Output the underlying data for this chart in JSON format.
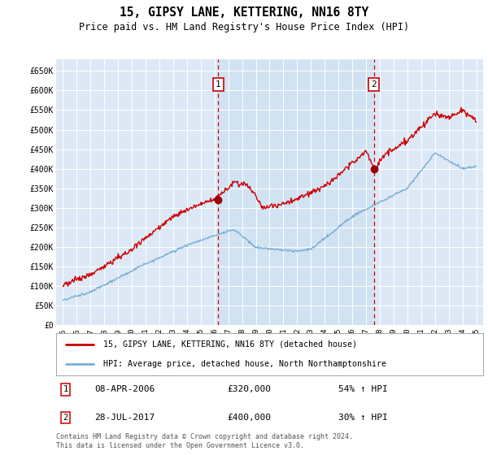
{
  "title": "15, GIPSY LANE, KETTERING, NN16 8TY",
  "subtitle": "Price paid vs. HM Land Registry's House Price Index (HPI)",
  "plot_bg_color": "#dce8f5",
  "ylim": [
    0,
    680000
  ],
  "yticks": [
    0,
    50000,
    100000,
    150000,
    200000,
    250000,
    300000,
    350000,
    400000,
    450000,
    500000,
    550000,
    600000,
    650000
  ],
  "ytick_labels": [
    "£0",
    "£50K",
    "£100K",
    "£150K",
    "£200K",
    "£250K",
    "£300K",
    "£350K",
    "£400K",
    "£450K",
    "£500K",
    "£550K",
    "£600K",
    "£650K"
  ],
  "legend_line1": "15, GIPSY LANE, KETTERING, NN16 8TY (detached house)",
  "legend_line2": "HPI: Average price, detached house, North Northamptonshire",
  "event1_date": "08-APR-2006",
  "event1_price": "£320,000",
  "event1_hpi": "54% ↑ HPI",
  "event2_date": "28-JUL-2017",
  "event2_price": "£400,000",
  "event2_hpi": "30% ↑ HPI",
  "footnote": "Contains HM Land Registry data © Crown copyright and database right 2024.\nThis data is licensed under the Open Government Licence v3.0.",
  "hpi_color": "#7aaed4",
  "price_color": "#cc0000",
  "event_x1": 2006.27,
  "event_x2": 2017.58,
  "event1_y": 320000,
  "event2_y": 400000,
  "xmin": 1994.5,
  "xmax": 2025.5
}
